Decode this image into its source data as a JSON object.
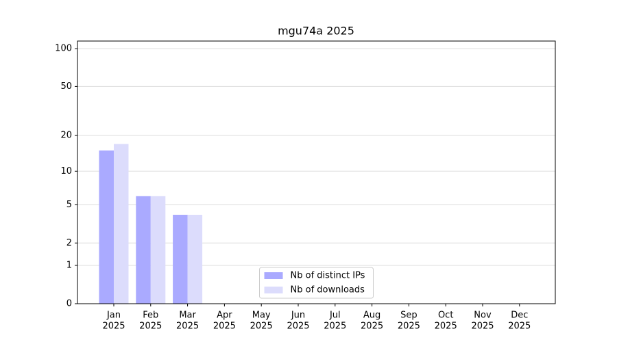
{
  "chart_data": {
    "type": "bar",
    "title": "mgu74a 2025",
    "scale": "log1p",
    "categories": [
      [
        "Jan",
        "2025"
      ],
      [
        "Feb",
        "2025"
      ],
      [
        "Mar",
        "2025"
      ],
      [
        "Apr",
        "2025"
      ],
      [
        "May",
        "2025"
      ],
      [
        "Jun",
        "2025"
      ],
      [
        "Jul",
        "2025"
      ],
      [
        "Aug",
        "2025"
      ],
      [
        "Sep",
        "2025"
      ],
      [
        "Oct",
        "2025"
      ],
      [
        "Nov",
        "2025"
      ],
      [
        "Dec",
        "2025"
      ]
    ],
    "series": [
      {
        "name": "Nb of distinct IPs",
        "color": "#aaaaff",
        "values": [
          15,
          6,
          4,
          null,
          null,
          null,
          null,
          null,
          null,
          null,
          null,
          null
        ]
      },
      {
        "name": "Nb of downloads",
        "color": "#dcdcfc",
        "values": [
          17,
          6,
          4,
          null,
          null,
          null,
          null,
          null,
          null,
          null,
          null,
          null
        ]
      }
    ],
    "ylim": [
      0,
      115
    ],
    "yticks": [
      0,
      1,
      2,
      5,
      10,
      20,
      50,
      100
    ],
    "grid": true,
    "legend": "lower center"
  }
}
